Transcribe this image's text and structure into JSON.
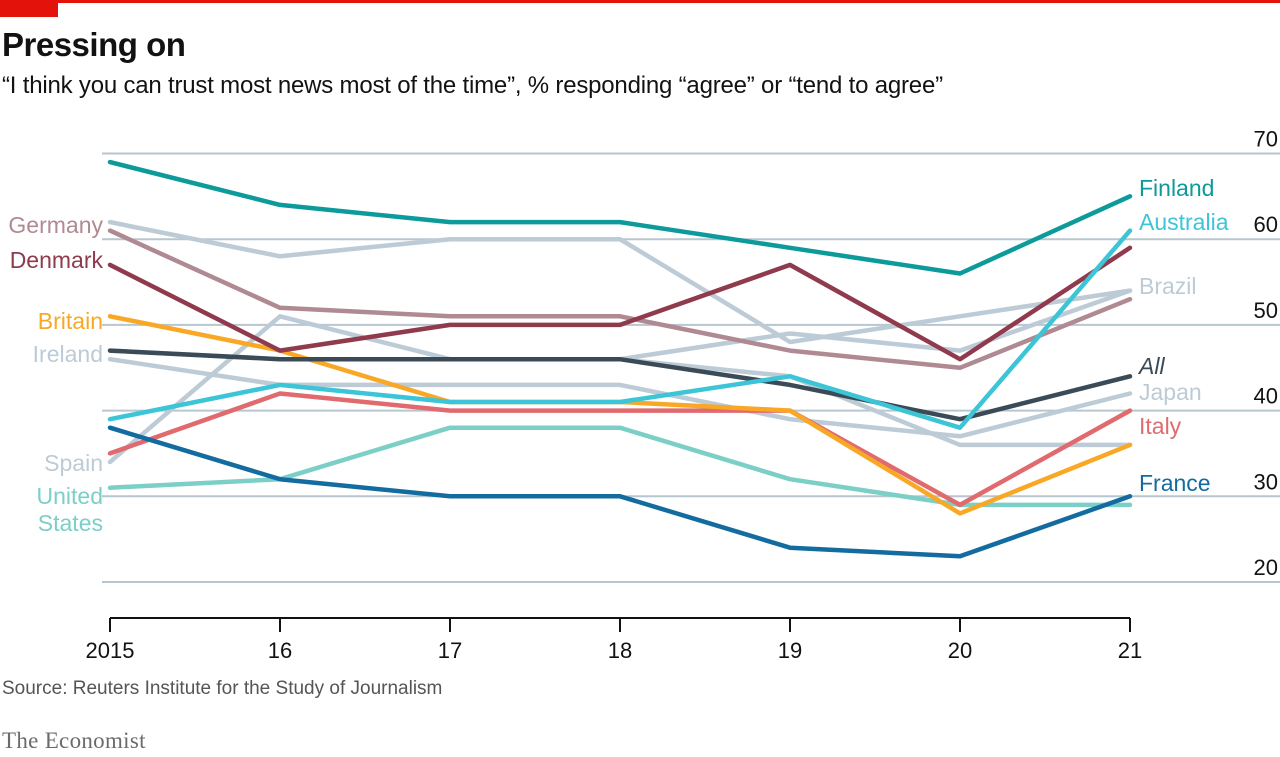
{
  "header": {
    "title": "Pressing on",
    "subtitle": "“I think you can trust most news most of the time”, % responding “agree” or “tend to agree”"
  },
  "footer": {
    "source": "Source: Reuters Institute for the Study of Journalism",
    "brand": "The Economist"
  },
  "colors": {
    "accent": "#e3120b",
    "grid": "#b7c6cf",
    "axis": "#121212"
  },
  "chart_data": {
    "type": "line",
    "title": "Pressing on",
    "subtitle": "“I think you can trust most news most of the time”, % responding “agree” or “tend to agree”",
    "xlabel": "",
    "ylabel": "",
    "x": [
      2015,
      2016,
      2017,
      2018,
      2019,
      2020,
      2021
    ],
    "x_tick_labels": [
      "2015",
      "16",
      "17",
      "18",
      "19",
      "20",
      "21"
    ],
    "y_ticks": [
      20,
      30,
      40,
      50,
      60,
      70
    ],
    "ylim": [
      16,
      71
    ],
    "grid": true,
    "y_axis_side": "right",
    "series": [
      {
        "name": "Japan",
        "label_display": "Japan",
        "label_side": "right",
        "color": "#bccbd6",
        "values": [
          46,
          43,
          43,
          43,
          39,
          37,
          42
        ]
      },
      {
        "name": "Brazil",
        "label_display": "Brazil",
        "label_side": "right",
        "color": "#bccbd6",
        "values": [
          62,
          58,
          60,
          60,
          48,
          51,
          54
        ]
      },
      {
        "name": "Spain",
        "label_display": "Spain",
        "label_side": "left",
        "color": "#bccbd6",
        "values": [
          34,
          51,
          46,
          46,
          44,
          36,
          36
        ]
      },
      {
        "name": "Ireland",
        "label_display": "Ireland",
        "label_side": "left",
        "color": "#bccbd6",
        "values": [
          47,
          46,
          46,
          46,
          49,
          47,
          54
        ]
      },
      {
        "name": "Germany",
        "label_display": "Germany",
        "label_side": "left",
        "color": "#b08a93",
        "values": [
          61,
          52,
          51,
          51,
          47,
          45,
          53
        ]
      },
      {
        "name": "United States",
        "label_display": "United\nStates",
        "label_side": "left",
        "color": "#7bcfc6",
        "values": [
          31,
          32,
          38,
          38,
          32,
          29,
          29
        ]
      },
      {
        "name": "Italy",
        "label_display": "Italy",
        "label_side": "right",
        "color": "#e06a6e",
        "values": [
          35,
          42,
          40,
          40,
          40,
          29,
          40
        ]
      },
      {
        "name": "Britain",
        "label_display": "Britain",
        "label_side": "left",
        "color": "#f9a826",
        "values": [
          51,
          47,
          41,
          41,
          40,
          28,
          36
        ]
      },
      {
        "name": "Denmark",
        "label_display": "Denmark",
        "label_side": "left",
        "color": "#8f3a4d",
        "values": [
          57,
          47,
          50,
          50,
          57,
          46,
          59
        ]
      },
      {
        "name": "All",
        "label_display": "All",
        "label_side": "right",
        "color": "#3a4b57",
        "italic": true,
        "values": [
          47,
          46,
          46,
          46,
          43,
          39,
          44
        ]
      },
      {
        "name": "Australia",
        "label_display": "Australia",
        "label_side": "right",
        "color": "#3cc5d6",
        "values": [
          39,
          43,
          41,
          41,
          44,
          38,
          61
        ]
      },
      {
        "name": "France",
        "label_display": "France",
        "label_side": "right",
        "color": "#136b9f",
        "values": [
          38,
          32,
          30,
          30,
          24,
          23,
          30
        ]
      },
      {
        "name": "Finland",
        "label_display": "Finland",
        "label_side": "right",
        "color": "#0d9a9b",
        "values": [
          69,
          64,
          62,
          62,
          59,
          56,
          65
        ]
      }
    ]
  }
}
